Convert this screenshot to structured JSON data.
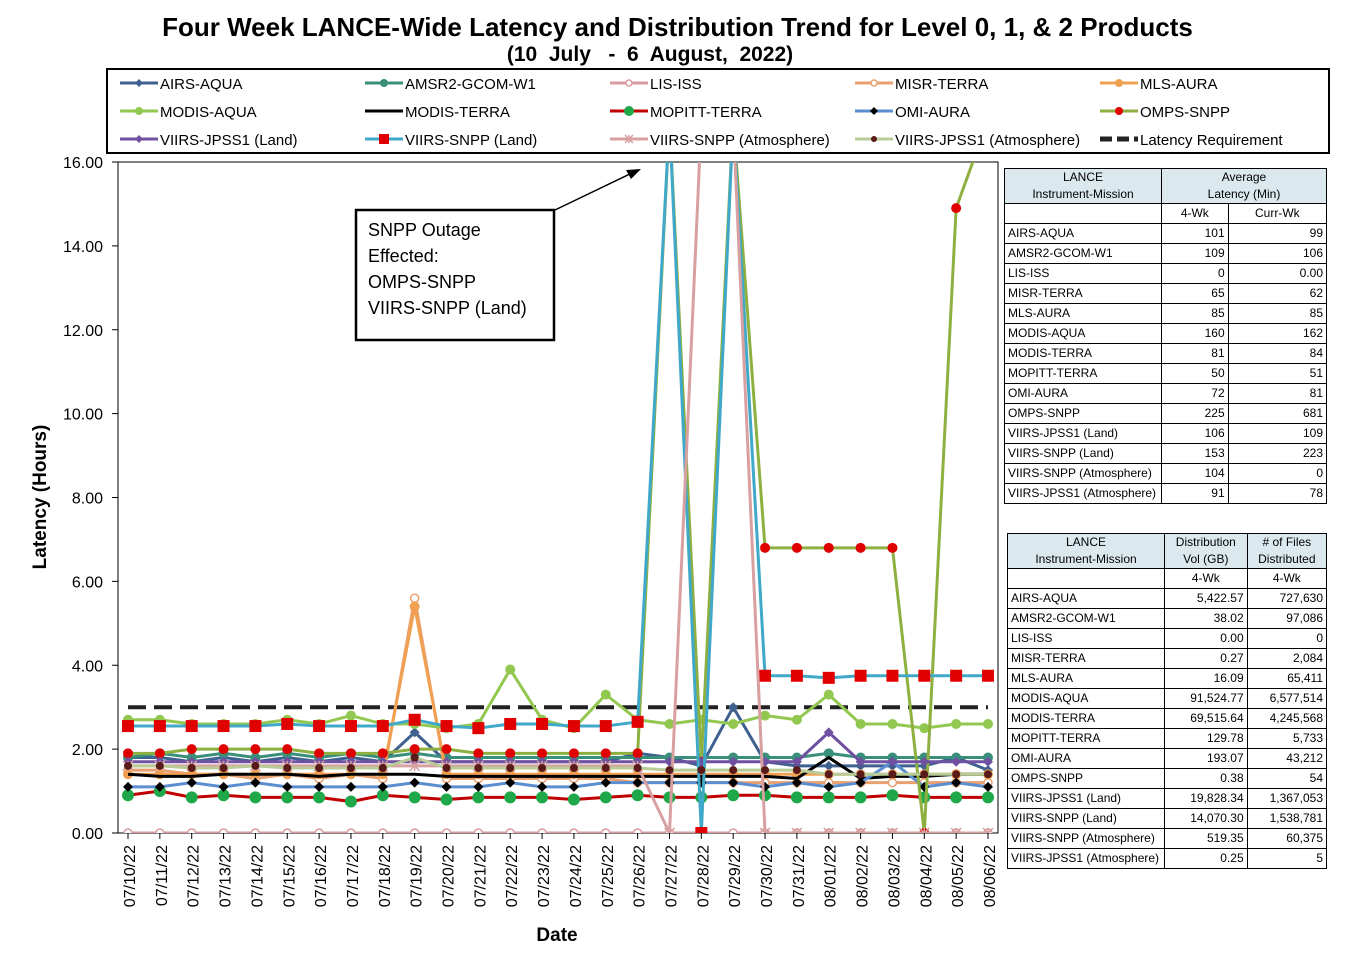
{
  "title": "Four Week LANCE-Wide Latency and Distribution Trend for Level 0, 1, & 2 Products",
  "subtitle": "(10  July   -  6  August,  2022)",
  "chart_data": {
    "type": "line",
    "xlabel": "Date",
    "ylabel": "Latency (Hours)",
    "ylim": [
      0,
      16
    ],
    "yticks": [
      "0.00",
      "2.00",
      "4.00",
      "6.00",
      "8.00",
      "10.00",
      "12.00",
      "14.00",
      "16.00"
    ],
    "categories": [
      "07/10/22",
      "07/11/22",
      "07/12/22",
      "07/13/22",
      "07/14/22",
      "07/15/22",
      "07/16/22",
      "07/17/22",
      "07/18/22",
      "07/19/22",
      "07/20/22",
      "07/21/22",
      "07/22/22",
      "07/23/22",
      "07/24/22",
      "07/25/22",
      "07/26/22",
      "07/27/22",
      "07/28/22",
      "07/29/22",
      "07/30/22",
      "07/31/22",
      "08/01/22",
      "08/02/22",
      "08/03/22",
      "08/04/22",
      "08/05/22",
      "08/06/22"
    ],
    "legend_placement": "top",
    "annotation": {
      "lines": [
        "SNPP Outage",
        "Effected:",
        "OMPS-SNPP",
        "VIIRS-SNPP (Land)"
      ]
    },
    "series": [
      {
        "name": "AIRS-AQUA",
        "color": "#3f6190",
        "marker": "diamond",
        "values": [
          1.8,
          1.8,
          1.7,
          1.8,
          1.7,
          1.8,
          1.7,
          1.8,
          1.7,
          2.4,
          1.7,
          1.7,
          1.7,
          1.7,
          1.7,
          1.7,
          1.9,
          1.8,
          1.6,
          3.0,
          1.7,
          1.6,
          1.6,
          1.6,
          1.6,
          1.6,
          1.8,
          1.5
        ]
      },
      {
        "name": "AMSR2-GCOM-W1",
        "color": "#3a8f7a",
        "marker": "circle",
        "values": [
          1.8,
          1.9,
          1.8,
          1.9,
          1.8,
          1.9,
          1.8,
          1.9,
          1.8,
          1.9,
          1.8,
          1.8,
          1.8,
          1.8,
          1.8,
          1.8,
          1.8,
          1.8,
          1.8,
          1.8,
          1.8,
          1.8,
          1.9,
          1.8,
          1.8,
          1.8,
          1.8,
          1.8
        ]
      },
      {
        "name": "LIS-ISS",
        "color": "#d99aa0",
        "marker": "circle-open",
        "values": [
          0,
          0,
          0,
          0,
          0,
          0,
          0,
          0,
          0,
          0,
          0,
          0,
          0,
          0,
          0,
          0,
          0,
          0,
          0,
          0,
          0,
          0,
          0,
          0,
          0,
          0,
          0,
          0
        ]
      },
      {
        "name": "MISR-TERRA",
        "color": "#e8a070",
        "marker": "circle-open",
        "values": [
          1.5,
          1.5,
          1.4,
          1.4,
          1.3,
          1.4,
          1.3,
          1.4,
          1.3,
          5.6,
          1.3,
          1.3,
          1.3,
          1.3,
          1.3,
          1.3,
          1.2,
          1.2,
          1.2,
          1.2,
          1.2,
          1.2,
          1.2,
          1.2,
          1.2,
          1.2,
          1.2,
          1.2
        ]
      },
      {
        "name": "MLS-AURA",
        "color": "#f0a050",
        "marker": "circle",
        "values": [
          1.4,
          1.4,
          1.4,
          1.4,
          1.4,
          1.4,
          1.4,
          1.4,
          1.4,
          5.4,
          1.4,
          1.4,
          1.4,
          1.4,
          1.4,
          1.4,
          1.4,
          1.4,
          1.4,
          1.4,
          1.4,
          1.4,
          1.4,
          1.4,
          1.4,
          1.4,
          1.4,
          1.4
        ]
      },
      {
        "name": "MODIS-AQUA",
        "color": "#92c850",
        "marker": "circle",
        "values": [
          2.7,
          2.7,
          2.6,
          2.6,
          2.6,
          2.7,
          2.6,
          2.8,
          2.6,
          2.6,
          2.5,
          2.6,
          3.9,
          2.7,
          2.5,
          3.3,
          2.7,
          2.6,
          2.7,
          2.6,
          2.8,
          2.7,
          3.3,
          2.6,
          2.6,
          2.5,
          2.6,
          2.6
        ]
      },
      {
        "name": "MODIS-TERRA",
        "color": "#000000",
        "marker": "none",
        "values": [
          1.4,
          1.35,
          1.35,
          1.4,
          1.4,
          1.4,
          1.35,
          1.4,
          1.4,
          1.4,
          1.35,
          1.35,
          1.35,
          1.35,
          1.35,
          1.35,
          1.35,
          1.35,
          1.35,
          1.35,
          1.35,
          1.3,
          1.8,
          1.3,
          1.35,
          1.35,
          1.4,
          1.4
        ]
      },
      {
        "name": "MOPITT-TERRA",
        "color": "#c00000",
        "marker": "circle-green",
        "values": [
          0.9,
          1.0,
          0.85,
          0.9,
          0.85,
          0.85,
          0.85,
          0.75,
          0.9,
          0.85,
          0.8,
          0.85,
          0.85,
          0.85,
          0.8,
          0.85,
          0.9,
          0.85,
          0.85,
          0.9,
          0.9,
          0.85,
          0.85,
          0.85,
          0.9,
          0.85,
          0.85,
          0.85
        ]
      },
      {
        "name": "OMI-AURA",
        "color": "#5b8ed0",
        "marker": "diamond-black",
        "values": [
          1.1,
          1.1,
          1.2,
          1.1,
          1.2,
          1.1,
          1.1,
          1.1,
          1.1,
          1.2,
          1.1,
          1.1,
          1.2,
          1.1,
          1.1,
          1.2,
          1.2,
          1.2,
          1.2,
          1.2,
          1.1,
          1.2,
          1.1,
          1.2,
          1.7,
          1.1,
          1.2,
          1.1
        ]
      },
      {
        "name": "OMPS-SNPP",
        "color": "#8db040",
        "marker": "circle-red",
        "values": [
          1.9,
          1.9,
          2.0,
          2.0,
          2.0,
          2.0,
          1.9,
          1.9,
          1.9,
          2.0,
          2.0,
          1.9,
          1.9,
          1.9,
          1.9,
          1.9,
          1.9,
          17.0,
          1.7,
          17.0,
          6.8,
          6.8,
          6.8,
          6.8,
          6.8,
          0,
          14.9,
          17.0
        ]
      },
      {
        "name": "VIIRS-JPSS1 (Land)",
        "color": "#7050a0",
        "marker": "diamond",
        "values": [
          1.7,
          1.7,
          1.7,
          1.7,
          1.7,
          1.7,
          1.7,
          1.7,
          1.7,
          1.7,
          1.7,
          1.7,
          1.7,
          1.7,
          1.7,
          1.7,
          1.7,
          1.7,
          1.7,
          1.7,
          1.7,
          1.7,
          2.4,
          1.7,
          1.7,
          1.7,
          1.7,
          1.7
        ]
      },
      {
        "name": "VIIRS-SNPP (Land)",
        "color": "#40a8c8",
        "marker": "square-red",
        "values": [
          2.55,
          2.55,
          2.55,
          2.55,
          2.55,
          2.6,
          2.55,
          2.55,
          2.55,
          2.7,
          2.55,
          2.5,
          2.6,
          2.6,
          2.55,
          2.55,
          2.65,
          17.0,
          0,
          17.0,
          3.75,
          3.75,
          3.7,
          3.75,
          3.75,
          3.75,
          3.75,
          3.75
        ]
      },
      {
        "name": "VIIRS-SNPP (Atmosphere)",
        "color": "#d8a0a0",
        "marker": "star",
        "values": [
          1.6,
          1.6,
          1.6,
          1.6,
          1.6,
          1.6,
          1.6,
          1.6,
          1.6,
          1.6,
          1.6,
          1.6,
          1.6,
          1.6,
          1.6,
          1.6,
          1.6,
          0,
          17.0,
          17.0,
          0,
          0,
          0,
          0,
          0,
          0,
          0,
          0
        ]
      },
      {
        "name": "VIIRS-JPSS1 (Atmosphere)",
        "color": "#b8cc98",
        "marker": "circle-brown",
        "values": [
          1.6,
          1.6,
          1.55,
          1.55,
          1.6,
          1.55,
          1.55,
          1.55,
          1.55,
          1.8,
          1.55,
          1.55,
          1.55,
          1.55,
          1.55,
          1.55,
          1.55,
          1.5,
          1.5,
          1.5,
          1.5,
          1.5,
          1.4,
          1.4,
          1.4,
          1.4,
          1.4,
          1.4
        ]
      },
      {
        "name": "Latency Requirement",
        "color": "#222222",
        "marker": "dash",
        "values": [
          3,
          3,
          3,
          3,
          3,
          3,
          3,
          3,
          3,
          3,
          3,
          3,
          3,
          3,
          3,
          3,
          3,
          3,
          3,
          3,
          3,
          3,
          3,
          3,
          3,
          3,
          3,
          3
        ]
      }
    ]
  },
  "latency_table": {
    "head1": [
      "LANCE",
      "Average"
    ],
    "head2": [
      "Instrument-Mission",
      "Latency (Min)"
    ],
    "head3": [
      "4-Wk",
      "Curr-Wk"
    ],
    "rows": [
      [
        "AIRS-AQUA",
        "101",
        "99"
      ],
      [
        "AMSR2-GCOM-W1",
        "109",
        "106"
      ],
      [
        "LIS-ISS",
        "0",
        "0.00"
      ],
      [
        "MISR-TERRA",
        "65",
        "62"
      ],
      [
        "MLS-AURA",
        "85",
        "85"
      ],
      [
        "MODIS-AQUA",
        "160",
        "162"
      ],
      [
        "MODIS-TERRA",
        "81",
        "84"
      ],
      [
        "MOPITT-TERRA",
        "50",
        "51"
      ],
      [
        "OMI-AURA",
        "72",
        "81"
      ],
      [
        "OMPS-SNPP",
        "225",
        "681"
      ],
      [
        "VIIRS-JPSS1 (Land)",
        "106",
        "109"
      ],
      [
        "VIIRS-SNPP (Land)",
        "153",
        "223"
      ],
      [
        "VIIRS-SNPP (Atmosphere)",
        "104",
        "0"
      ],
      [
        "VIIRS-JPSS1 (Atmosphere)",
        "91",
        "78"
      ]
    ]
  },
  "distribution_table": {
    "head1": [
      "LANCE",
      "Distribution",
      "# of Files"
    ],
    "head2": [
      "Instrument-Mission",
      "Vol (GB)",
      "Distributed"
    ],
    "head3": [
      "4-Wk",
      "4-Wk"
    ],
    "rows": [
      [
        "AIRS-AQUA",
        "5,422.57",
        "727,630"
      ],
      [
        "AMSR2-GCOM-W1",
        "38.02",
        "97,086"
      ],
      [
        "LIS-ISS",
        "0.00",
        "0"
      ],
      [
        "MISR-TERRA",
        "0.27",
        "2,084"
      ],
      [
        "MLS-AURA",
        "16.09",
        "65,411"
      ],
      [
        "MODIS-AQUA",
        "91,524.77",
        "6,577,514"
      ],
      [
        "MODIS-TERRA",
        "69,515.64",
        "4,245,568"
      ],
      [
        "MOPITT-TERRA",
        "129.78",
        "5,733"
      ],
      [
        "OMI-AURA",
        "193.07",
        "43,212"
      ],
      [
        "OMPS-SNPP",
        "0.38",
        "54"
      ],
      [
        "VIIRS-JPSS1 (Land)",
        "19,828.34",
        "1,367,053"
      ],
      [
        "VIIRS-SNPP (Land)",
        "14,070.30",
        "1,538,781"
      ],
      [
        "VIIRS-SNPP (Atmosphere)",
        "519.35",
        "60,375"
      ],
      [
        "VIIRS-JPSS1 (Atmosphere)",
        "0.25",
        "5"
      ]
    ]
  }
}
